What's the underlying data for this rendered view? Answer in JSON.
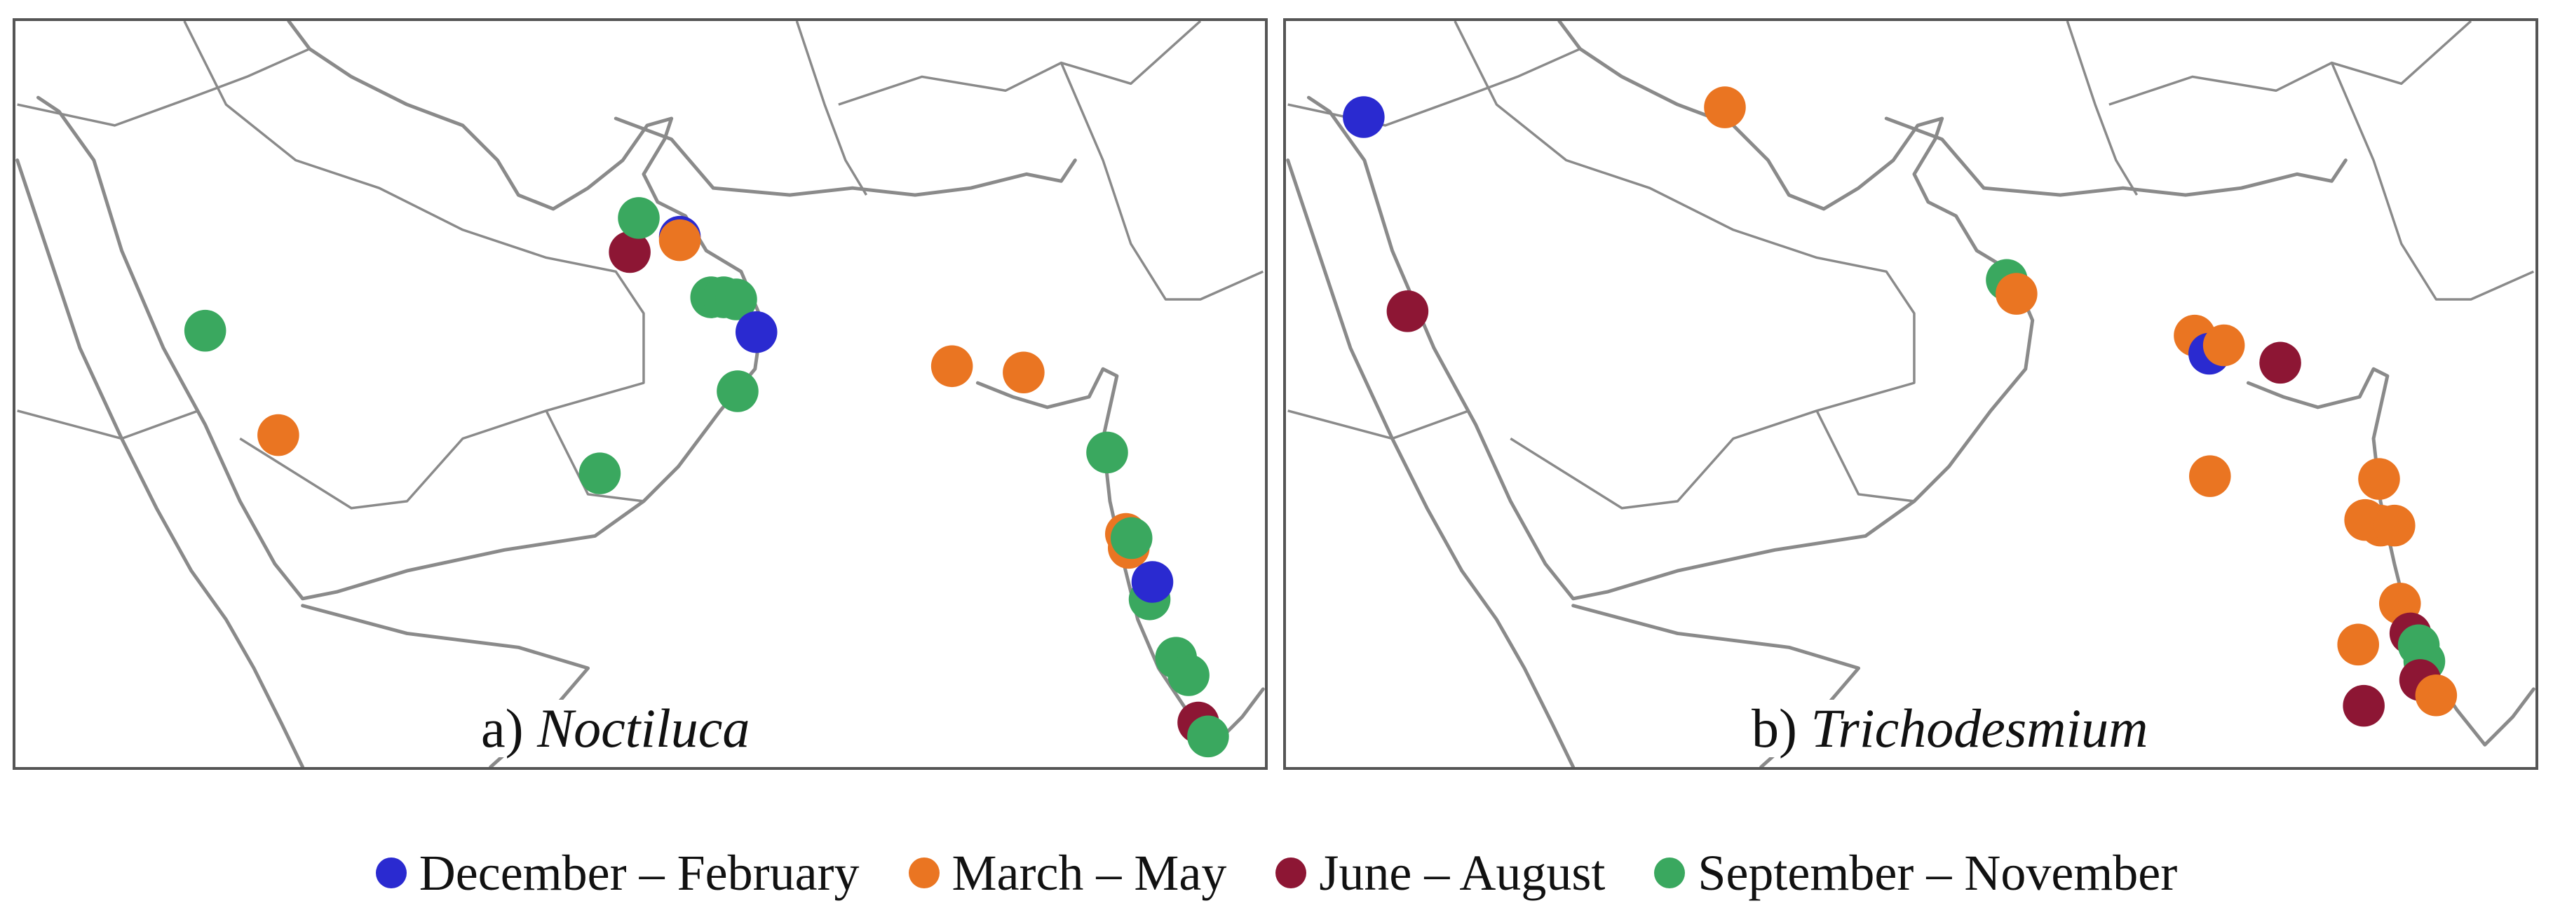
{
  "colors": {
    "winter": "#2a2ad0",
    "spring": "#ea7522",
    "summer": "#8d1634",
    "autumn": "#3aa85f",
    "coastline": "#8a8a8a"
  },
  "legend": [
    {
      "label": "December – February",
      "season": "winter"
    },
    {
      "label": "March – May",
      "season": "spring"
    },
    {
      "label": "June – August",
      "season": "summer"
    },
    {
      "label": "September – November",
      "season": "autumn"
    }
  ],
  "panels": [
    {
      "prefix": "a) ",
      "name": "Noctiluca"
    },
    {
      "prefix": "b) ",
      "name": "Trichodesmium"
    }
  ]
}
